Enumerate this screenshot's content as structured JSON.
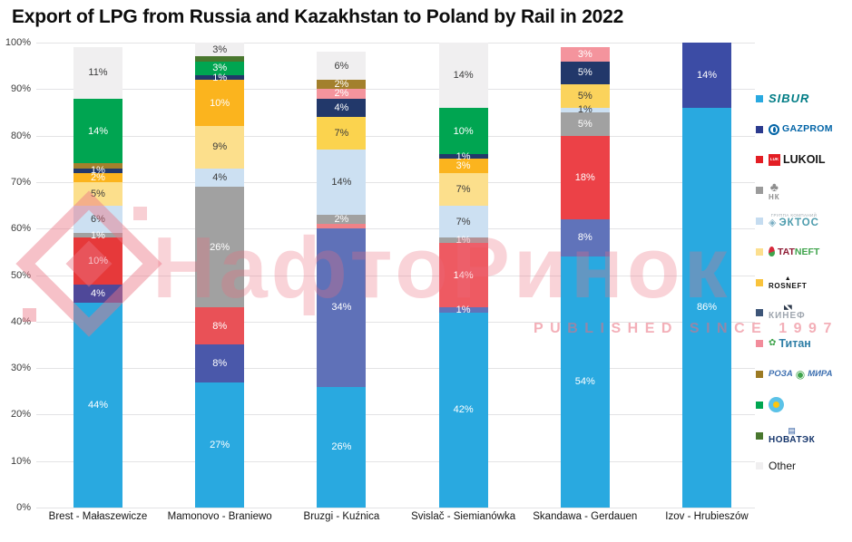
{
  "title": "Export of LPG from Russia and Kazakhstan to Poland by Rail in 2022",
  "watermark": {
    "text": "НафтоРинок",
    "subtext": "PUBLISHED SINCE 1997"
  },
  "chart_data": {
    "type": "bar",
    "stacked": true,
    "value_format": "percent",
    "ylim": [
      0,
      100
    ],
    "grid": "horizontal",
    "legend_position": "right",
    "yticks": [
      "100%",
      "90%",
      "80%",
      "70%",
      "60%",
      "50%",
      "40%",
      "30%",
      "20%",
      "10%",
      "0%"
    ],
    "categories": [
      "Brest - Małaszewicze",
      "Mamonovo - Braniewo",
      "Bruzgi - Kuźnica",
      "Svislač - Siemianówka",
      "Skandawa - Gerdauen",
      "Izov - Hrubieszów"
    ],
    "companies": {
      "sibur": {
        "label": "SIBUR",
        "color": "#29A9E0"
      },
      "gazprom": {
        "label": "GAZPROM",
        "color": "#3343A0"
      },
      "lukoil": {
        "label": "LUKOIL",
        "color": "#E6393A"
      },
      "nk": {
        "label": "НК",
        "color": "#A1A1A1"
      },
      "ektos": {
        "label": "ЭКТОС",
        "color": "#CCE0F2"
      },
      "tatneft": {
        "label": "TATNEFT",
        "color": "#FCDF8C"
      },
      "rosneft": {
        "label": "ROSNEFT",
        "color": "#FBB41E"
      },
      "kinef": {
        "label": "КИНЕФ",
        "color": "#22386A"
      },
      "titan": {
        "label": "Титан",
        "color": "#F4949D"
      },
      "roza_mira": {
        "label": "РОЗА МИРА",
        "color": "#A3802C"
      },
      "kazakhstan": {
        "label": "",
        "color": "#00A551"
      },
      "novatek": {
        "label": "НОВАТЭК",
        "color": "#49772E"
      },
      "other": {
        "label": "Other",
        "color": "#F0EFF0"
      }
    },
    "bars": [
      {
        "segments": [
          {
            "company": "sibur",
            "value": 44,
            "label": "44%"
          },
          {
            "company": "gazprom",
            "value": 4,
            "label": "4%",
            "color": "#4F4899"
          },
          {
            "company": "lukoil",
            "value": 10,
            "label": "10%"
          },
          {
            "company": "nk",
            "value": 1,
            "label": "1%"
          },
          {
            "company": "ektos",
            "value": 6,
            "label": "6%"
          },
          {
            "company": "tatneft",
            "value": 5,
            "label": "5%"
          },
          {
            "company": "rosneft",
            "value": 2,
            "label": "2%"
          },
          {
            "company": "kinef",
            "value": 1,
            "label": "1%"
          },
          {
            "company": "roza_mira",
            "value": 1,
            "label": ""
          },
          {
            "company": "kazakhstan",
            "value": 14,
            "label": "14%"
          },
          {
            "company": "other",
            "value": 11,
            "label": "11%"
          }
        ]
      },
      {
        "segments": [
          {
            "company": "sibur",
            "value": 27,
            "label": "27%"
          },
          {
            "company": "gazprom",
            "value": 8,
            "label": "8%",
            "color": "#4A58AA"
          },
          {
            "company": "lukoil",
            "value": 8,
            "label": "8%",
            "color": "#E95157"
          },
          {
            "company": "nk",
            "value": 26,
            "label": "26%"
          },
          {
            "company": "ektos",
            "value": 4,
            "label": "4%"
          },
          {
            "company": "tatneft",
            "value": 9,
            "label": "9%"
          },
          {
            "company": "rosneft",
            "value": 10,
            "label": "10%"
          },
          {
            "company": "kinef",
            "value": 1,
            "label": "1%"
          },
          {
            "company": "kazakhstan",
            "value": 3,
            "label": "3%"
          },
          {
            "company": "novatek",
            "value": 1,
            "label": ""
          },
          {
            "company": "other",
            "value": 3,
            "label": "3%"
          }
        ]
      },
      {
        "segments": [
          {
            "company": "sibur",
            "value": 26,
            "label": "26%"
          },
          {
            "company": "gazprom",
            "value": 34,
            "label": "34%",
            "color": "#5F71B8"
          },
          {
            "company": "lukoil",
            "value": 1,
            "label": "",
            "color": "#EF8287"
          },
          {
            "company": "nk",
            "value": 2,
            "label": "2%"
          },
          {
            "company": "ektos",
            "value": 14,
            "label": "14%"
          },
          {
            "company": "rosneft",
            "value": 7,
            "label": "7%",
            "color": "#FBD34E"
          },
          {
            "company": "kinef",
            "value": 4,
            "label": "4%"
          },
          {
            "company": "titan",
            "value": 2,
            "label": "2%"
          },
          {
            "company": "roza_mira",
            "value": 2,
            "label": "2%"
          },
          {
            "company": "other",
            "value": 6,
            "label": "6%"
          }
        ]
      },
      {
        "segments": [
          {
            "company": "sibur",
            "value": 42,
            "label": "42%"
          },
          {
            "company": "gazprom",
            "value": 1,
            "label": "1%",
            "color": "#6073BA"
          },
          {
            "company": "lukoil",
            "value": 14,
            "label": "14%",
            "color": "#EE5A62"
          },
          {
            "company": "nk",
            "value": 1,
            "label": "1%"
          },
          {
            "company": "ektos",
            "value": 7,
            "label": "7%"
          },
          {
            "company": "tatneft",
            "value": 7,
            "label": "7%"
          },
          {
            "company": "rosneft",
            "value": 3,
            "label": "3%"
          },
          {
            "company": "kinef",
            "value": 1,
            "label": "1%"
          },
          {
            "company": "kazakhstan",
            "value": 10,
            "label": "10%"
          },
          {
            "company": "other",
            "value": 14,
            "label": "14%"
          }
        ]
      },
      {
        "segments": [
          {
            "company": "sibur",
            "value": 54,
            "label": "54%"
          },
          {
            "company": "gazprom",
            "value": 8,
            "label": "8%",
            "color": "#6073BA"
          },
          {
            "company": "lukoil",
            "value": 18,
            "label": "18%",
            "color": "#EC4147"
          },
          {
            "company": "nk",
            "value": 5,
            "label": "5%"
          },
          {
            "company": "ektos",
            "value": 1,
            "label": "1%"
          },
          {
            "company": "rosneft",
            "value": 5,
            "label": "5%",
            "color": "#FBD35C"
          },
          {
            "company": "kinef",
            "value": 5,
            "label": "5%"
          },
          {
            "company": "titan",
            "value": 3,
            "label": "3%"
          }
        ]
      },
      {
        "segments": [
          {
            "company": "sibur",
            "value": 86,
            "label": "86%"
          },
          {
            "company": "gazprom",
            "value": 14,
            "label": "14%",
            "color": "#3C4CA5"
          }
        ]
      }
    ]
  },
  "legend": {
    "items": [
      {
        "company": "sibur",
        "marker": "#29A9E0",
        "line": [
          {
            "text": "SIBUR",
            "cls": "lg-sibur"
          }
        ]
      },
      {
        "company": "gazprom",
        "marker": "#2B3A8E",
        "line": [
          {
            "icon": "gazprom-flame-icon",
            "cls": "ico-gazprom"
          },
          {
            "text": "GAZPROM",
            "cls": "lg-gazprom"
          }
        ]
      },
      {
        "company": "lukoil",
        "marker": "#E31E24",
        "line": [
          {
            "icon": "lukoil-box-icon",
            "cls": "ico-lukoil"
          },
          {
            "text": "LUKOIL",
            "cls": "lg-lukoil"
          }
        ]
      },
      {
        "company": "nk",
        "marker": "#9B9B9B",
        "top": {
          "icon": "palm-tree-icon",
          "cls": "ico-nk"
        },
        "line": [
          {
            "text": "НК",
            "cls": "lg-nk"
          }
        ]
      },
      {
        "company": "ektos",
        "marker": "#C5DCF0",
        "top": {
          "text": "ГРУППА КОМПАНИЙ",
          "cls": "lg-caption"
        },
        "line": [
          {
            "icon": "ektos-diamond-icon",
            "cls": "ico-ektos"
          },
          {
            "text": "ЭКТОС",
            "cls": "lg-ektos"
          }
        ]
      },
      {
        "company": "tatneft",
        "marker": "#FCDF8E",
        "line": [
          {
            "icon": "tatneft-flame-icon",
            "cls": "ico-tatneft"
          },
          {
            "text": "TAT",
            "cls": "lg-tatneft-red"
          },
          {
            "text": "NEFT",
            "cls": "lg-tatneft-green"
          }
        ]
      },
      {
        "company": "rosneft",
        "marker": "#F9C33C",
        "top": {
          "icon": "rosneft-derrick-icon",
          "cls": "ico-rosneft"
        },
        "line": [
          {
            "text": "ROSNEFT",
            "cls": "lg-rosneft"
          }
        ]
      },
      {
        "company": "kinef",
        "marker": "#3D5578",
        "top": {
          "icon": "kinef-wings-icon",
          "cls": "ico-kinef"
        },
        "line": [
          {
            "text": "КИНЕФ",
            "cls": "lg-kinef"
          }
        ]
      },
      {
        "company": "titan",
        "marker": "#F28C9B",
        "line": [
          {
            "icon": "titan-leaf-icon",
            "cls": "ico-titan"
          },
          {
            "text": "Титан",
            "cls": "lg-titan"
          }
        ]
      },
      {
        "company": "roza_mira",
        "marker": "#9C7A23",
        "line": [
          {
            "text": "РОЗА",
            "cls": "lg-roza"
          },
          {
            "icon": "roza-mira-globe-icon",
            "cls": "ico-roza"
          },
          {
            "text": "МИРА",
            "cls": "lg-roza"
          }
        ]
      },
      {
        "company": "kazakhstan",
        "marker": "#00A651",
        "line": [
          {
            "icon": "kazakhstan-flag-icon",
            "cls": "ico-kz"
          }
        ]
      },
      {
        "company": "novatek",
        "marker": "#49772E",
        "top": {
          "icon": "novatek-emblem-icon",
          "cls": "ico-novatek"
        },
        "line": [
          {
            "text": "НОВАТЭК",
            "cls": "lg-novatek"
          }
        ]
      },
      {
        "company": "other",
        "marker": "#F0EFF0",
        "line": [
          {
            "text": "Other",
            "cls": "lg-other"
          }
        ]
      }
    ]
  }
}
